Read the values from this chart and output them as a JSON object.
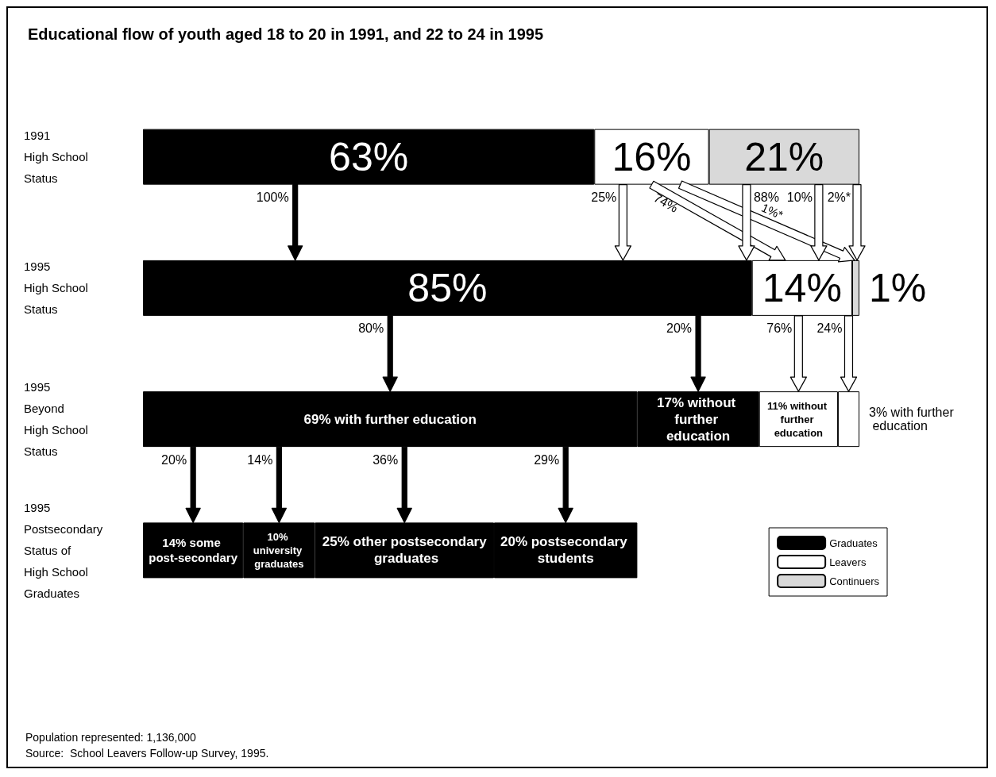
{
  "chart_data": {
    "type": "bar",
    "orientation": "horizontal",
    "stacked": true,
    "title": "Educational flow of youth aged 18 to 20 in 1991, and 22 to 24 in 1995",
    "categories": [
      "1991\nHigh School\nStatus",
      "1995\nHigh School\nStatus",
      "1995\nBeyond\nHigh School\nStatus",
      "1995\nPostsecondary\nStatus of\nHigh School\nGraduates"
    ],
    "xlim": [
      0,
      100
    ],
    "tick_labels": "y",
    "legend": "bottom right",
    "series": [
      {
        "name": "Graduates",
        "color": "#000000",
        "values": [
          63,
          85,
          69,
          14
        ],
        "value_labels": [
          "63%",
          "85%",
          "69% with further education",
          "14% some post-secondary"
        ]
      },
      {
        "color": "#000000",
        "values": [
          null,
          null,
          17,
          10
        ],
        "value_labels": [
          null,
          null,
          "17% without further education",
          "10% university graduates"
        ]
      },
      {
        "color": "#000000",
        "values": [
          null,
          null,
          null,
          25
        ],
        "value_labels": [
          null,
          null,
          null,
          "25% other postsecondary graduates"
        ]
      },
      {
        "color": "#000000",
        "values": [
          null,
          null,
          null,
          20
        ],
        "value_labels": [
          null,
          null,
          null,
          "20% postsecondary students"
        ]
      },
      {
        "name": "Leavers",
        "color": "#ffffff",
        "values": [
          16,
          14,
          11,
          null
        ],
        "value_labels": [
          "16%",
          "14%",
          "11% without further education",
          null
        ]
      },
      {
        "color": "#ffffff",
        "values": [
          null,
          null,
          3,
          null
        ],
        "value_labels": [
          null,
          null,
          "3% with further education",
          null
        ]
      },
      {
        "name": "Continuers",
        "color": "#d9d9d9",
        "values": [
          21,
          1,
          null,
          null
        ],
        "value_labels": [
          "21%",
          "1%",
          null,
          null
        ]
      }
    ],
    "annotations": [
      "100%",
      "25%",
      "74%",
      "1%*",
      "88%",
      "10%",
      "2%*",
      "80%",
      "20%",
      "76%",
      "24%",
      "20%",
      "14%",
      "36%",
      "29%",
      "Population represented: 1,136,000",
      "Source:  School Leavers Follow-up Survey, 1995."
    ]
  }
}
